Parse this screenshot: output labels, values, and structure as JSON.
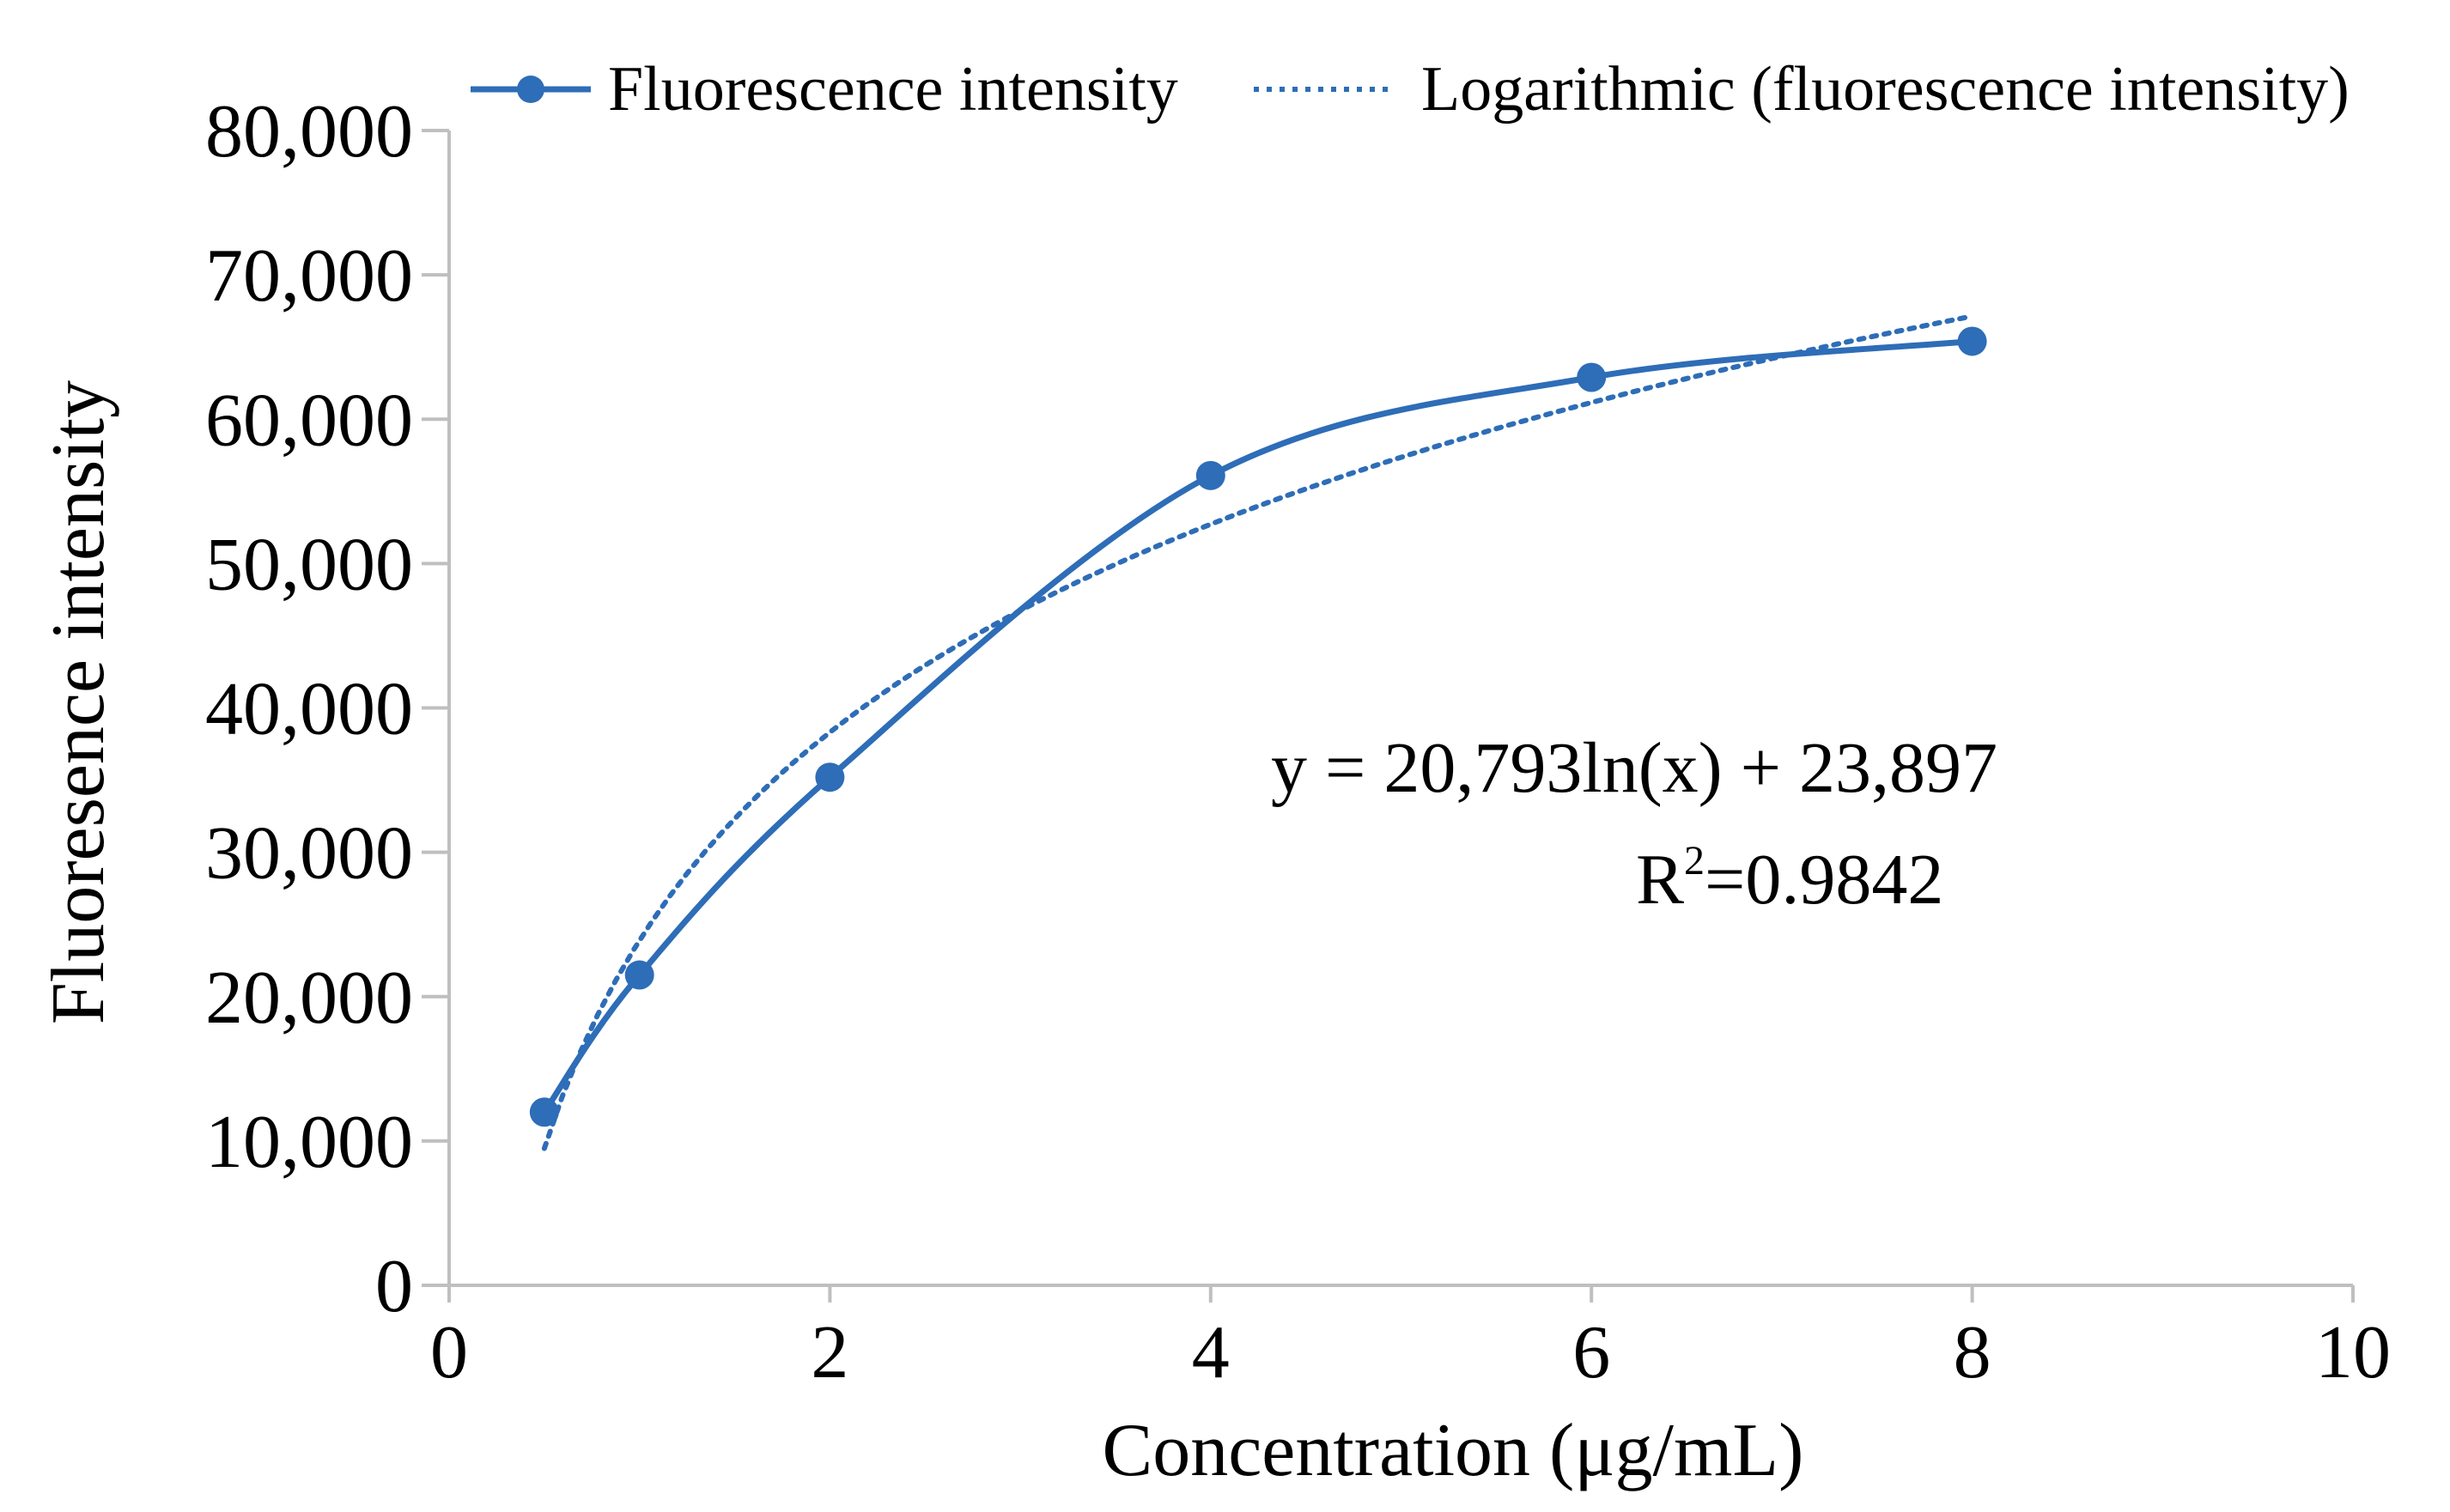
{
  "chart_data": {
    "type": "line",
    "xlabel": "Concentration (μg/mL)",
    "ylabel": "Fluoresence intensity",
    "xlim": [
      0,
      10
    ],
    "ylim": [
      0,
      80000
    ],
    "x_ticks": [
      0,
      2,
      4,
      6,
      8,
      10
    ],
    "y_ticks": [
      0,
      10000,
      20000,
      30000,
      40000,
      50000,
      60000,
      70000,
      80000
    ],
    "x_tick_labels": [
      "0",
      "2",
      "4",
      "6",
      "8",
      "10"
    ],
    "y_tick_labels": [
      "0",
      "10,000",
      "20,000",
      "30,000",
      "40,000",
      "50,000",
      "60,000",
      "70,000",
      "80,000"
    ],
    "legend_position": "top",
    "series": [
      {
        "name": "Fluorescence intensity",
        "style": "solid-smooth-markers",
        "x": [
          0.5,
          1,
          2,
          4,
          6,
          8
        ],
        "y": [
          12000,
          21500,
          35200,
          56100,
          62900,
          65400
        ]
      }
    ],
    "trendline": {
      "name": "Logarithmic (fluorescence intensity)",
      "style": "dotted",
      "type": "logarithmic",
      "a": 20793,
      "b": 23897,
      "x_range": [
        0.5,
        8
      ]
    },
    "annotation": {
      "equation": "y = 20,793ln(x) + 23,897",
      "r2_prefix": "R",
      "r2_sup": "2",
      "r2_value": "=0.9842"
    },
    "colors": {
      "series": "#2E6DB7",
      "axis": "#BFBFBF",
      "text": "#000000"
    }
  }
}
